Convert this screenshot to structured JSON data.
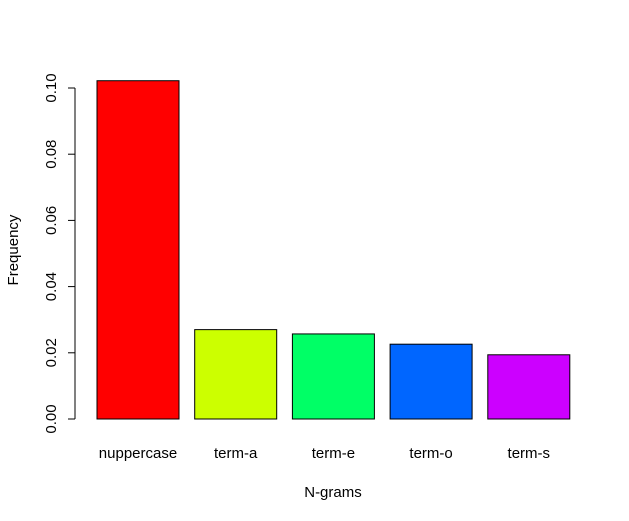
{
  "chart_data": {
    "type": "bar",
    "title": "",
    "xlabel": "N-grams",
    "ylabel": "Frequency",
    "categories": [
      "nuppercase",
      "term-a",
      "term-e",
      "term-o",
      "term-s"
    ],
    "values": [
      0.1022,
      0.027,
      0.0257,
      0.0226,
      0.0194
    ],
    "colors": [
      "#ff0000",
      "#ccff00",
      "#00ff66",
      "#0066ff",
      "#cc00ff"
    ],
    "ylim": [
      0,
      0.1
    ],
    "yticks": [
      0.0,
      0.02,
      0.04,
      0.06,
      0.08,
      0.1
    ],
    "ytick_labels": [
      "0.00",
      "0.02",
      "0.04",
      "0.06",
      "0.08",
      "0.10"
    ],
    "grid": false,
    "legend": "none"
  }
}
